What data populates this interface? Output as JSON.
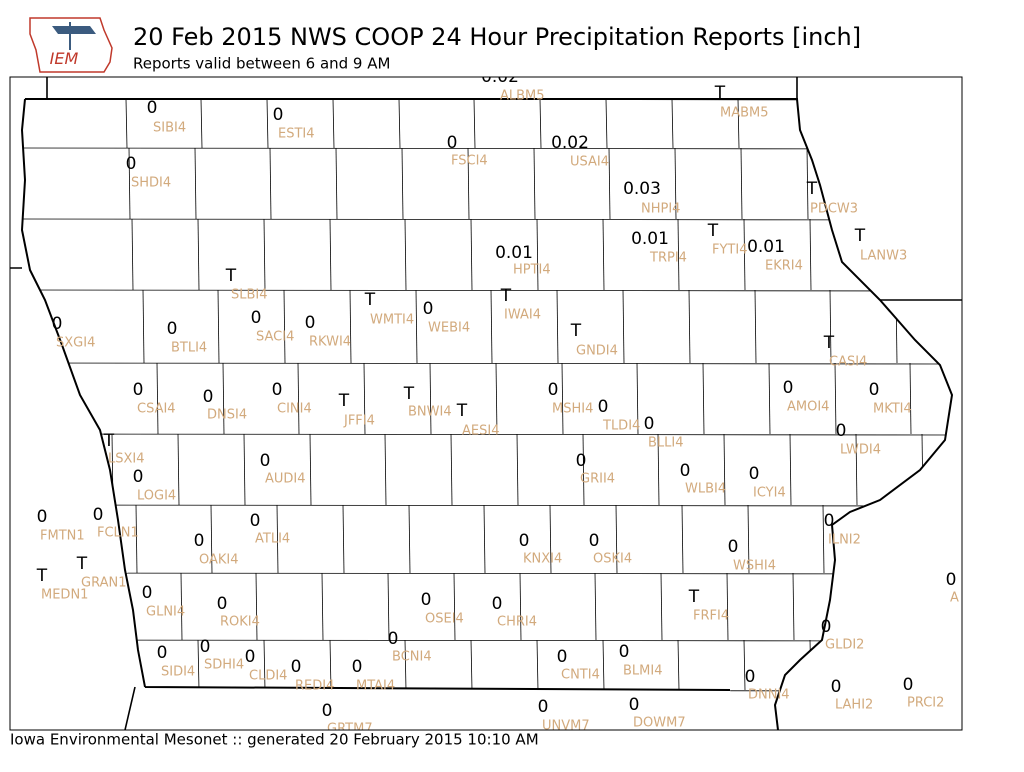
{
  "header": {
    "logo_text": "IEM",
    "title": "20 Feb 2015 NWS COOP 24 Hour Precipitation Reports [inch]",
    "subtitle": "Reports valid between 6 and 9 AM"
  },
  "footer": "Iowa Environmental Mesonet :: generated 20 February 2015 10:10 AM",
  "stations": [
    {
      "value": "0",
      "id": "SIBI4"
    },
    {
      "value": "0",
      "id": "ESTI4"
    },
    {
      "value": "0.02",
      "id": "ALBM5"
    },
    {
      "value": "T",
      "id": "MABM5"
    },
    {
      "value": "0",
      "id": "FSCI4"
    },
    {
      "value": "0.02",
      "id": "USAI4"
    },
    {
      "value": "0",
      "id": "SHDI4"
    },
    {
      "value": "0.03",
      "id": "NHPI4"
    },
    {
      "value": "T",
      "id": "PDCW3"
    },
    {
      "value": "0.01",
      "id": "TRPI4"
    },
    {
      "value": "T",
      "id": "FYTI4"
    },
    {
      "value": "0.01",
      "id": "EKRI4"
    },
    {
      "value": "T",
      "id": "LANW3"
    },
    {
      "value": "0.01",
      "id": "HPTI4"
    },
    {
      "value": "T",
      "id": "SLBI4"
    },
    {
      "value": "T",
      "id": "WMTI4"
    },
    {
      "value": "0",
      "id": "WEBI4"
    },
    {
      "value": "T",
      "id": "IWAI4"
    },
    {
      "value": "0",
      "id": "SXGI4"
    },
    {
      "value": "0",
      "id": "BTLI4"
    },
    {
      "value": "0",
      "id": "SACI4"
    },
    {
      "value": "0",
      "id": "RKWI4"
    },
    {
      "value": "T",
      "id": "GNDI4"
    },
    {
      "value": "T",
      "id": "CASI4"
    },
    {
      "value": "0",
      "id": "CSAI4"
    },
    {
      "value": "0",
      "id": "DNSI4"
    },
    {
      "value": "0",
      "id": "CINI4"
    },
    {
      "value": "T",
      "id": "JFFI4"
    },
    {
      "value": "T",
      "id": "BNWI4"
    },
    {
      "value": "T",
      "id": "AESI4"
    },
    {
      "value": "0",
      "id": "MSHI4"
    },
    {
      "value": "0",
      "id": "TLDI4"
    },
    {
      "value": "0",
      "id": "BLLI4"
    },
    {
      "value": "0",
      "id": "AMOI4"
    },
    {
      "value": "0",
      "id": "MKTI4"
    },
    {
      "value": "0",
      "id": "LWDI4"
    },
    {
      "value": "T",
      "id": "LSXI4"
    },
    {
      "value": "0",
      "id": "LOGI4"
    },
    {
      "value": "0",
      "id": "AUDI4"
    },
    {
      "value": "0",
      "id": "GRII4"
    },
    {
      "value": "0",
      "id": "WLBI4"
    },
    {
      "value": "0",
      "id": "ICYI4"
    },
    {
      "value": "0",
      "id": "FMTN1"
    },
    {
      "value": "0",
      "id": "FCLN1"
    },
    {
      "value": "0",
      "id": "ATLI4"
    },
    {
      "value": "0",
      "id": "ILNI2"
    },
    {
      "value": "0",
      "id": "OAKI4"
    },
    {
      "value": "0",
      "id": "KNXI4"
    },
    {
      "value": "0",
      "id": "OSKI4"
    },
    {
      "value": "0",
      "id": "WSHI4"
    },
    {
      "value": "T",
      "id": "GRAN1"
    },
    {
      "value": "T",
      "id": "MEDN1"
    },
    {
      "value": "0",
      "id": "GLNI4"
    },
    {
      "value": "0",
      "id": "ROKI4"
    },
    {
      "value": "0",
      "id": "OSEI4"
    },
    {
      "value": "0",
      "id": "CHRI4"
    },
    {
      "value": "T",
      "id": "FRFI4"
    },
    {
      "value": "0",
      "id": "A"
    },
    {
      "value": "0",
      "id": "GLDI2"
    },
    {
      "value": "0",
      "id": "BCNI4"
    },
    {
      "value": "0",
      "id": "SDHI4"
    },
    {
      "value": "0",
      "id": "SIDI4"
    },
    {
      "value": "0",
      "id": "CLDI4"
    },
    {
      "value": "0",
      "id": "REDI4"
    },
    {
      "value": "0",
      "id": "MTAI4"
    },
    {
      "value": "0",
      "id": "CNTI4"
    },
    {
      "value": "0",
      "id": "BLMI4"
    },
    {
      "value": "0",
      "id": "DNNI4"
    },
    {
      "value": "0",
      "id": "LAHI2"
    },
    {
      "value": "0",
      "id": "PRCI2"
    },
    {
      "value": "0",
      "id": "GRTM7"
    },
    {
      "value": "0",
      "id": "UNVM7"
    },
    {
      "value": "0",
      "id": "DOWM7"
    }
  ]
}
